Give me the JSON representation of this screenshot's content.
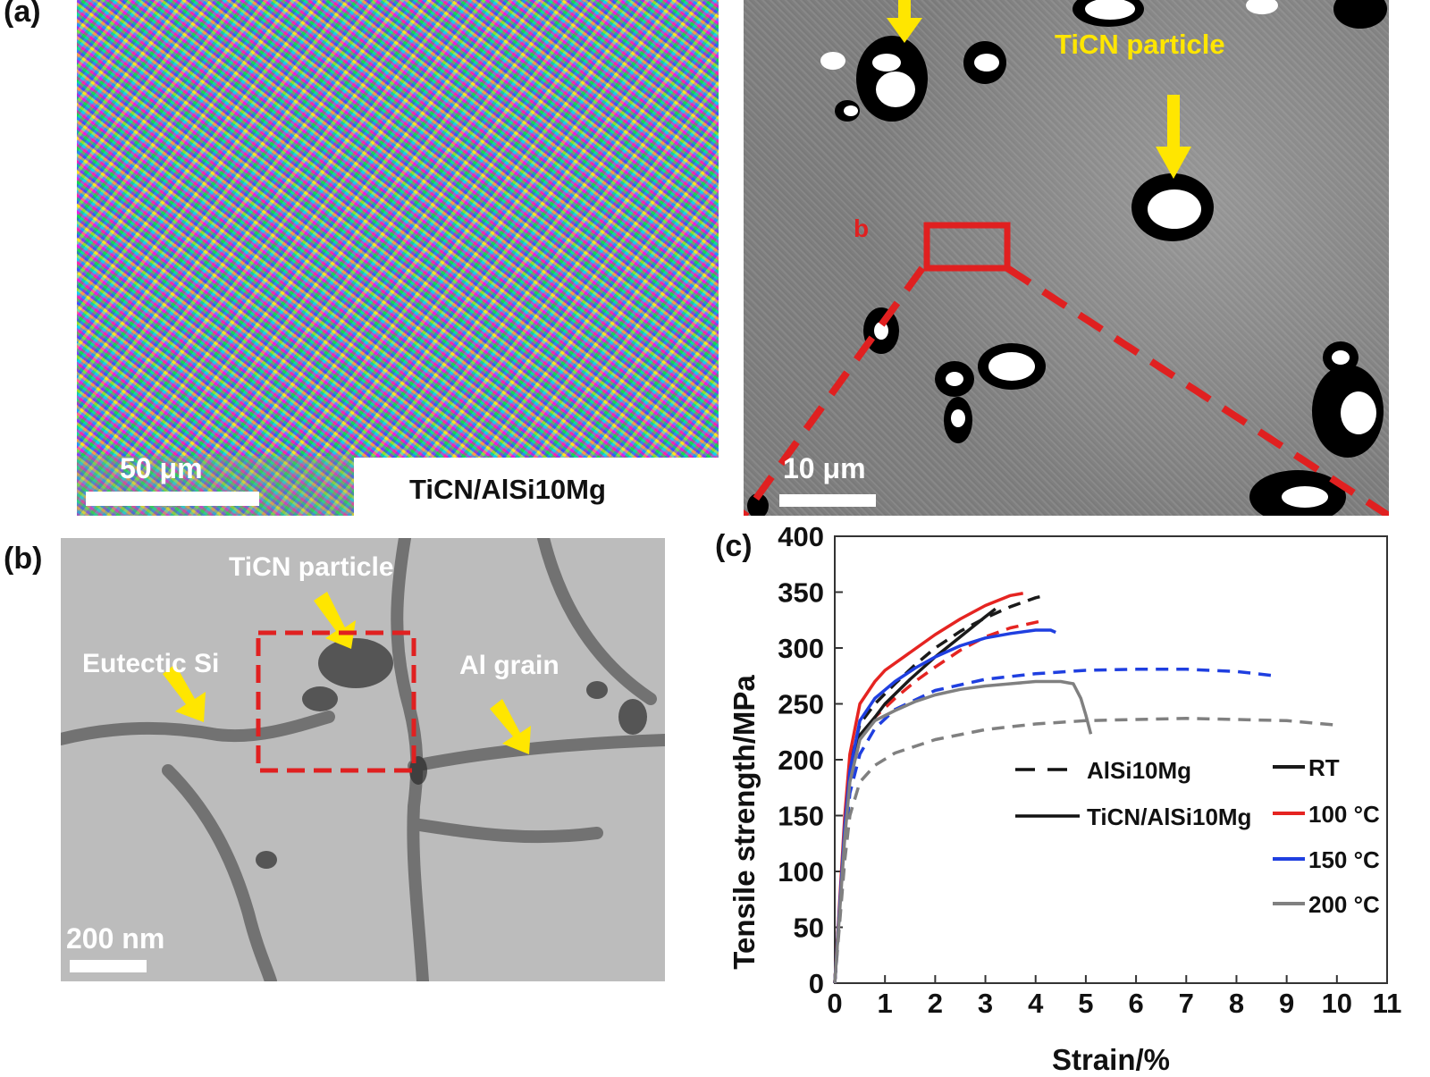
{
  "panel_a": {
    "label": "(a)",
    "ebsd_scale": "50 μm",
    "sample_label": "TiCN/AlSi10Mg",
    "sem_scale": "10 μm",
    "sem_particle_label": "TiCN particle",
    "sem_inset_marker": "b"
  },
  "panel_b": {
    "label": "(b)",
    "particle_label": "TiCN particle",
    "eutectic_label": "Eutectic Si",
    "grain_label": "Al grain",
    "scale": "200 nm"
  },
  "panel_c": {
    "label": "(c)"
  },
  "colors": {
    "RT": "#1a1a1a",
    "100C": "#e52421",
    "150C": "#1f3fe0",
    "200C": "#808080",
    "annotation_yellow": "#ffe600",
    "highlight_red": "#e02020"
  },
  "chart_data": {
    "type": "line",
    "xlabel": "Strain/%",
    "ylabel": "Tensile strength/MPa",
    "xlim": [
      0,
      11
    ],
    "ylim": [
      0,
      400
    ],
    "xticks": [
      0,
      1,
      2,
      3,
      4,
      5,
      6,
      7,
      8,
      9,
      10,
      11
    ],
    "yticks": [
      0,
      50,
      100,
      150,
      200,
      250,
      300,
      350,
      400
    ],
    "grid": false,
    "legend": {
      "placement": "bottom-right",
      "style_entries": [
        {
          "label": "AlSi10Mg",
          "dash": "dashed"
        },
        {
          "label": "TiCN/AlSi10Mg",
          "dash": "solid"
        }
      ],
      "color_entries": [
        {
          "label": "RT",
          "color_key": "RT"
        },
        {
          "label": "100 °C",
          "color_key": "100C"
        },
        {
          "label": "150 °C",
          "color_key": "150C"
        },
        {
          "label": "200 °C",
          "color_key": "200C"
        }
      ]
    },
    "series": [
      {
        "material": "AlSi10Mg",
        "temperature": "RT",
        "dash": "dashed",
        "points": [
          [
            0,
            0
          ],
          [
            0.1,
            70
          ],
          [
            0.2,
            140
          ],
          [
            0.3,
            195
          ],
          [
            0.5,
            232
          ],
          [
            0.8,
            250
          ],
          [
            1.2,
            268
          ],
          [
            1.6,
            285
          ],
          [
            2.0,
            300
          ],
          [
            2.5,
            315
          ],
          [
            3.0,
            327
          ],
          [
            3.5,
            337
          ],
          [
            4.0,
            345
          ],
          [
            4.1,
            346
          ]
        ]
      },
      {
        "material": "AlSi10Mg",
        "temperature": "100 °C",
        "dash": "dashed",
        "points": [
          [
            0,
            0
          ],
          [
            0.1,
            65
          ],
          [
            0.2,
            130
          ],
          [
            0.3,
            180
          ],
          [
            0.5,
            218
          ],
          [
            0.8,
            238
          ],
          [
            1.2,
            255
          ],
          [
            1.6,
            270
          ],
          [
            2.0,
            283
          ],
          [
            2.5,
            298
          ],
          [
            3.0,
            310
          ],
          [
            3.5,
            318
          ],
          [
            4.0,
            323
          ],
          [
            4.1,
            324
          ]
        ]
      },
      {
        "material": "AlSi10Mg",
        "temperature": "150 °C",
        "dash": "dashed",
        "points": [
          [
            0,
            0
          ],
          [
            0.1,
            60
          ],
          [
            0.2,
            120
          ],
          [
            0.3,
            170
          ],
          [
            0.5,
            205
          ],
          [
            0.8,
            228
          ],
          [
            1.2,
            245
          ],
          [
            2.0,
            262
          ],
          [
            3.0,
            272
          ],
          [
            4.0,
            277
          ],
          [
            5.0,
            280
          ],
          [
            6.0,
            281
          ],
          [
            7.0,
            281
          ],
          [
            8.0,
            279
          ],
          [
            8.8,
            275
          ]
        ]
      },
      {
        "material": "AlSi10Mg",
        "temperature": "200 °C",
        "dash": "dashed",
        "points": [
          [
            0,
            0
          ],
          [
            0.1,
            55
          ],
          [
            0.2,
            110
          ],
          [
            0.3,
            150
          ],
          [
            0.5,
            180
          ],
          [
            0.8,
            195
          ],
          [
            1.2,
            206
          ],
          [
            2.0,
            218
          ],
          [
            3.0,
            227
          ],
          [
            4.0,
            232
          ],
          [
            5.0,
            235
          ],
          [
            6.0,
            236
          ],
          [
            7.0,
            237
          ],
          [
            8.0,
            236
          ],
          [
            9.0,
            235
          ],
          [
            10.0,
            231
          ]
        ]
      },
      {
        "material": "TiCN/AlSi10Mg",
        "temperature": "RT",
        "dash": "solid",
        "points": [
          [
            0,
            0
          ],
          [
            0.1,
            70
          ],
          [
            0.2,
            140
          ],
          [
            0.3,
            195
          ],
          [
            0.5,
            222
          ],
          [
            0.8,
            238
          ],
          [
            1.0,
            250
          ],
          [
            1.5,
            272
          ],
          [
            2.0,
            292
          ],
          [
            2.5,
            310
          ],
          [
            3.0,
            328
          ],
          [
            3.2,
            335
          ]
        ]
      },
      {
        "material": "TiCN/AlSi10Mg",
        "temperature": "100 °C",
        "dash": "solid",
        "points": [
          [
            0,
            0
          ],
          [
            0.1,
            75
          ],
          [
            0.2,
            150
          ],
          [
            0.3,
            205
          ],
          [
            0.5,
            250
          ],
          [
            0.8,
            270
          ],
          [
            1.0,
            280
          ],
          [
            1.5,
            296
          ],
          [
            2.0,
            312
          ],
          [
            2.5,
            326
          ],
          [
            3.0,
            338
          ],
          [
            3.5,
            347
          ],
          [
            3.75,
            349
          ]
        ]
      },
      {
        "material": "TiCN/AlSi10Mg",
        "temperature": "150 °C",
        "dash": "solid",
        "points": [
          [
            0,
            0
          ],
          [
            0.1,
            70
          ],
          [
            0.2,
            140
          ],
          [
            0.3,
            190
          ],
          [
            0.5,
            235
          ],
          [
            0.8,
            255
          ],
          [
            1.2,
            270
          ],
          [
            1.6,
            282
          ],
          [
            2.0,
            292
          ],
          [
            2.5,
            302
          ],
          [
            3.0,
            309
          ],
          [
            3.5,
            313
          ],
          [
            4.0,
            316
          ],
          [
            4.3,
            316
          ],
          [
            4.4,
            314
          ]
        ]
      },
      {
        "material": "TiCN/AlSi10Mg",
        "temperature": "200 °C",
        "dash": "solid",
        "points": [
          [
            0,
            0
          ],
          [
            0.1,
            65
          ],
          [
            0.2,
            130
          ],
          [
            0.3,
            180
          ],
          [
            0.5,
            218
          ],
          [
            0.8,
            235
          ],
          [
            1.2,
            244
          ],
          [
            1.6,
            252
          ],
          [
            2.0,
            258
          ],
          [
            2.5,
            263
          ],
          [
            3.0,
            266
          ],
          [
            3.5,
            268
          ],
          [
            4.0,
            270
          ],
          [
            4.5,
            270
          ],
          [
            4.75,
            268
          ],
          [
            4.9,
            255
          ],
          [
            5.0,
            240
          ],
          [
            5.1,
            223
          ]
        ]
      }
    ]
  }
}
